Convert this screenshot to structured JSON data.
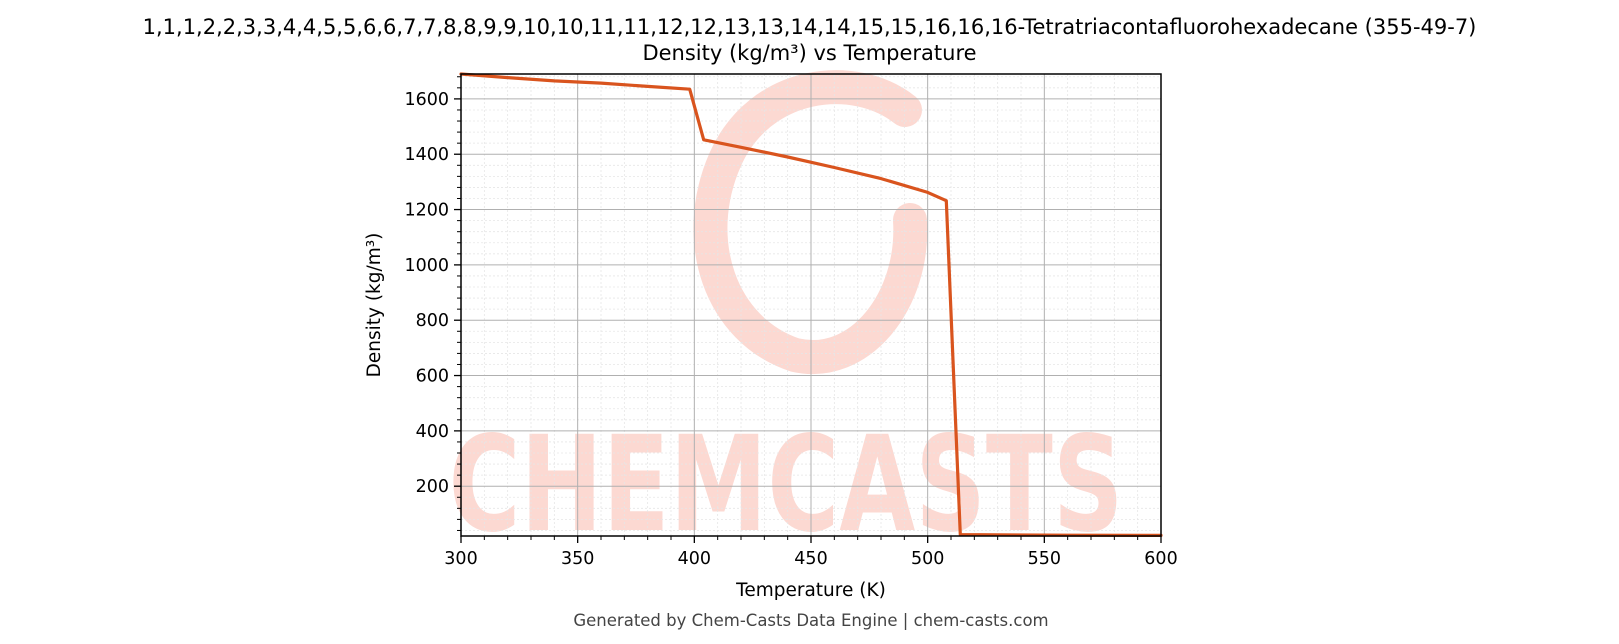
{
  "header": {
    "title_line1": "1,1,1,2,2,3,3,4,4,5,5,6,6,7,7,8,8,9,9,10,10,11,11,12,12,13,13,14,14,15,15,16,16,16-Tetratriacontafluorohexadecane (355-49-7)",
    "title_line2": "Density (kg/m³) vs Temperature"
  },
  "footer": {
    "credit": "Generated by Chem-Casts Data Engine | chem-casts.com"
  },
  "watermark": {
    "text": "CHEMCASTS",
    "color": "#fcd9d2"
  },
  "chart_data": {
    "type": "line",
    "title": "Density (kg/m³) vs Temperature",
    "xlabel": "Temperature (K)",
    "ylabel": "Density (kg/m³)",
    "xlim": [
      300,
      600
    ],
    "ylim": [
      20,
      1690
    ],
    "xticks": [
      300,
      350,
      400,
      450,
      500,
      550,
      600
    ],
    "yticks": [
      200,
      400,
      600,
      800,
      1000,
      1200,
      1400,
      1600
    ],
    "grid": true,
    "color": "#d9541e",
    "series": [
      {
        "x": [
          300,
          320,
          340,
          360,
          380,
          398,
          404,
          420,
          440,
          460,
          480,
          500,
          508,
          514,
          530,
          560,
          600
        ],
        "y": [
          1690,
          1677,
          1665,
          1657,
          1645,
          1635,
          1452,
          1425,
          1390,
          1352,
          1312,
          1262,
          1232,
          25,
          24,
          23,
          22
        ]
      }
    ]
  }
}
